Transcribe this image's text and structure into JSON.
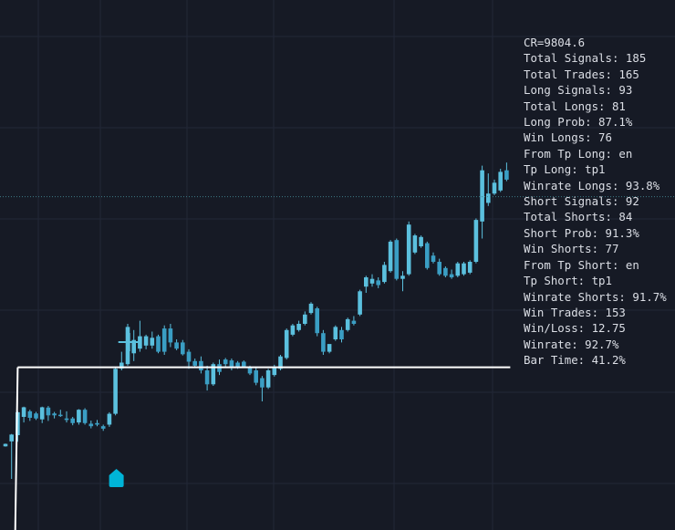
{
  "colors": {
    "background": "#161a25",
    "grid": "#222836",
    "candle": "#5bc0de",
    "candle_dark": "#3a9ec4",
    "level_line": "#ffffff",
    "dotted_line": "#3d7a86",
    "signal_marker": "#00b4d8",
    "stats_text": "#dcdfe6"
  },
  "stats": [
    "CR=9804.6",
    "Total Signals: 185",
    "Total Trades: 165",
    "Long Signals: 93",
    "Total Longs: 81",
    "Long Prob: 87.1%",
    "Win Longs: 76",
    "From Tp Long: en",
    "Tp Long: tp1",
    "Winrate Longs: 93.8%",
    "Short Signals: 92",
    "Total Shorts: 84",
    "Short Prob: 91.3%",
    "Win Shorts: 77",
    "From Tp Short: en",
    "Tp Short: tp1",
    "Winrate Shorts: 91.7%",
    "Win Trades: 153",
    "Win/Loss: 12.75",
    "Winrate: 92.7%",
    "Bar Time: 41.2%"
  ],
  "chart_data": {
    "type": "candlestick",
    "title": "",
    "xlabel": "",
    "ylabel": "",
    "grid": true,
    "ylim": [
      0,
      100
    ],
    "candles": [
      {
        "o": 10.5,
        "h": 11.4,
        "c": 11.3,
        "l": 10.4
      },
      {
        "o": 12.1,
        "h": 14.5,
        "c": 14.3,
        "l": 0.0
      },
      {
        "o": 14.1,
        "h": 21.8,
        "c": 21.5,
        "l": 12.0
      },
      {
        "o": 20.0,
        "h": 23.3,
        "c": 23.1,
        "l": 18.2
      },
      {
        "o": 21.8,
        "h": 22.3,
        "c": 19.7,
        "l": 18.7
      },
      {
        "o": 21.1,
        "h": 21.6,
        "c": 19.5,
        "l": 19.0
      },
      {
        "o": 19.2,
        "h": 23.3,
        "c": 23.1,
        "l": 18.0
      },
      {
        "o": 23.0,
        "h": 23.5,
        "c": 20.5,
        "l": 18.7
      },
      {
        "o": 21.1,
        "h": 21.6,
        "c": 20.5,
        "l": 19.5
      },
      {
        "o": 20.7,
        "h": 22.3,
        "c": 20.5,
        "l": 20.0
      },
      {
        "o": 19.5,
        "h": 21.8,
        "c": 19.0,
        "l": 18.2
      },
      {
        "o": 19.5,
        "h": 20.0,
        "c": 18.0,
        "l": 17.3
      },
      {
        "o": 18.2,
        "h": 22.5,
        "c": 22.3,
        "l": 17.5
      },
      {
        "o": 22.3,
        "h": 22.8,
        "c": 18.0,
        "l": 17.5
      },
      {
        "o": 17.8,
        "h": 18.8,
        "c": 17.0,
        "l": 16.3
      },
      {
        "o": 18.0,
        "h": 19.0,
        "c": 17.5,
        "l": 17.0
      },
      {
        "o": 17.0,
        "h": 17.5,
        "c": 16.2,
        "l": 15.5
      },
      {
        "o": 17.5,
        "h": 21.5,
        "c": 21.0,
        "l": 16.8
      },
      {
        "o": 21.0,
        "h": 36.0,
        "c": 35.5,
        "l": 20.5
      },
      {
        "o": 35.6,
        "h": 41.0,
        "c": 37.5,
        "l": 35.0
      },
      {
        "o": 37.0,
        "h": 50.0,
        "c": 49.0,
        "l": 36.5
      },
      {
        "o": 40.5,
        "h": 48.0,
        "c": 44.8,
        "l": 38.0
      },
      {
        "o": 42.0,
        "h": 51.0,
        "c": 46.0,
        "l": 41.0
      },
      {
        "o": 43.0,
        "h": 46.5,
        "c": 46.0,
        "l": 41.8
      },
      {
        "o": 43.0,
        "h": 47.5,
        "c": 45.5,
        "l": 42.0
      },
      {
        "o": 46.0,
        "h": 46.5,
        "c": 41.0,
        "l": 40.5
      },
      {
        "o": 48.5,
        "h": 49.5,
        "c": 41.0,
        "l": 40.0
      },
      {
        "o": 48.5,
        "h": 50.0,
        "c": 44.0,
        "l": 42.5
      },
      {
        "o": 44.0,
        "h": 45.0,
        "c": 42.0,
        "l": 41.5
      },
      {
        "o": 44.0,
        "h": 44.8,
        "c": 40.2,
        "l": 39.8
      },
      {
        "o": 41.0,
        "h": 41.8,
        "c": 37.8,
        "l": 35.5
      },
      {
        "o": 38.0,
        "h": 38.8,
        "c": 36.5,
        "l": 36.0
      },
      {
        "o": 38.0,
        "h": 39.5,
        "c": 35.0,
        "l": 34.0
      },
      {
        "o": 35.0,
        "h": 36.5,
        "c": 30.5,
        "l": 28.5
      },
      {
        "o": 30.5,
        "h": 37.5,
        "c": 37.0,
        "l": 30.0
      },
      {
        "o": 37.0,
        "h": 38.5,
        "c": 34.5,
        "l": 33.5
      },
      {
        "o": 38.5,
        "h": 39.0,
        "c": 37.0,
        "l": 35.8
      },
      {
        "o": 38.2,
        "h": 38.8,
        "c": 35.8,
        "l": 35.0
      },
      {
        "o": 37.5,
        "h": 38.0,
        "c": 35.8,
        "l": 35.5
      },
      {
        "o": 37.8,
        "h": 38.2,
        "c": 36.2,
        "l": 35.8
      },
      {
        "o": 35.8,
        "h": 36.5,
        "c": 34.0,
        "l": 33.5
      },
      {
        "o": 35.0,
        "h": 35.8,
        "c": 31.0,
        "l": 30.2
      },
      {
        "o": 32.5,
        "h": 33.2,
        "c": 29.5,
        "l": 25.0
      },
      {
        "o": 29.5,
        "h": 35.5,
        "c": 35.0,
        "l": 29.0
      },
      {
        "o": 33.5,
        "h": 36.8,
        "c": 36.2,
        "l": 33.0
      },
      {
        "o": 35.5,
        "h": 40.0,
        "c": 39.5,
        "l": 35.0
      },
      {
        "o": 39.0,
        "h": 48.5,
        "c": 48.0,
        "l": 38.5
      },
      {
        "o": 46.5,
        "h": 50.0,
        "c": 49.5,
        "l": 46.0
      },
      {
        "o": 48.0,
        "h": 51.0,
        "c": 50.0,
        "l": 47.5
      },
      {
        "o": 50.0,
        "h": 54.0,
        "c": 53.0,
        "l": 49.5
      },
      {
        "o": 53.5,
        "h": 57.0,
        "c": 56.5,
        "l": 53.0
      },
      {
        "o": 55.0,
        "h": 55.5,
        "c": 47.0,
        "l": 46.0
      },
      {
        "o": 47.0,
        "h": 48.0,
        "c": 41.0,
        "l": 40.0
      },
      {
        "o": 41.0,
        "h": 43.0,
        "c": 43.5,
        "l": 40.5
      },
      {
        "o": 45.0,
        "h": 49.5,
        "c": 49.0,
        "l": 44.5
      },
      {
        "o": 48.0,
        "h": 49.0,
        "c": 45.0,
        "l": 44.0
      },
      {
        "o": 48.0,
        "h": 52.0,
        "c": 51.5,
        "l": 47.5
      },
      {
        "o": 51.0,
        "h": 52.5,
        "c": 50.0,
        "l": 49.5
      },
      {
        "o": 53.0,
        "h": 61.0,
        "c": 60.5,
        "l": 52.5
      },
      {
        "o": 62.0,
        "h": 65.5,
        "c": 65.0,
        "l": 60.0
      },
      {
        "o": 63.0,
        "h": 66.0,
        "c": 64.5,
        "l": 62.0
      },
      {
        "o": 64.0,
        "h": 65.0,
        "c": 62.5,
        "l": 61.5
      },
      {
        "o": 63.5,
        "h": 70.0,
        "c": 69.0,
        "l": 63.0
      },
      {
        "o": 67.0,
        "h": 77.0,
        "c": 76.5,
        "l": 66.5
      },
      {
        "o": 77.0,
        "h": 77.5,
        "c": 64.5,
        "l": 64.0
      },
      {
        "o": 64.5,
        "h": 67.0,
        "c": 65.5,
        "l": 60.5
      },
      {
        "o": 66.0,
        "h": 83.0,
        "c": 82.0,
        "l": 65.5
      },
      {
        "o": 73.0,
        "h": 79.0,
        "c": 78.5,
        "l": 72.5
      },
      {
        "o": 75.0,
        "h": 78.5,
        "c": 78.0,
        "l": 74.5
      },
      {
        "o": 76.0,
        "h": 76.5,
        "c": 68.0,
        "l": 67.5
      },
      {
        "o": 72.0,
        "h": 73.0,
        "c": 70.0,
        "l": 69.5
      },
      {
        "o": 70.0,
        "h": 71.0,
        "c": 66.0,
        "l": 65.5
      },
      {
        "o": 68.0,
        "h": 68.5,
        "c": 65.5,
        "l": 65.0
      },
      {
        "o": 66.0,
        "h": 67.5,
        "c": 65.0,
        "l": 64.5
      },
      {
        "o": 65.5,
        "h": 70.0,
        "c": 69.5,
        "l": 65.0
      },
      {
        "o": 66.0,
        "h": 70.0,
        "c": 69.5,
        "l": 65.5
      },
      {
        "o": 66.5,
        "h": 70.5,
        "c": 70.0,
        "l": 66.0
      },
      {
        "o": 70.0,
        "h": 84.0,
        "c": 83.5,
        "l": 69.5
      },
      {
        "o": 83.0,
        "h": 101.0,
        "c": 99.5,
        "l": 77.5
      },
      {
        "o": 89.0,
        "h": 98.5,
        "c": 92.0,
        "l": 88.0
      },
      {
        "o": 92.0,
        "h": 96.5,
        "c": 95.5,
        "l": 91.5
      },
      {
        "o": 93.0,
        "h": 100.0,
        "c": 99.0,
        "l": 92.5
      },
      {
        "o": 99.5,
        "h": 102.0,
        "c": 96.5,
        "l": 96.0
      }
    ],
    "level_line": 36.0,
    "current_price_line": 91.0,
    "signal": {
      "type": "long",
      "bar_index": 18
    },
    "marker_bar_index": 21
  }
}
